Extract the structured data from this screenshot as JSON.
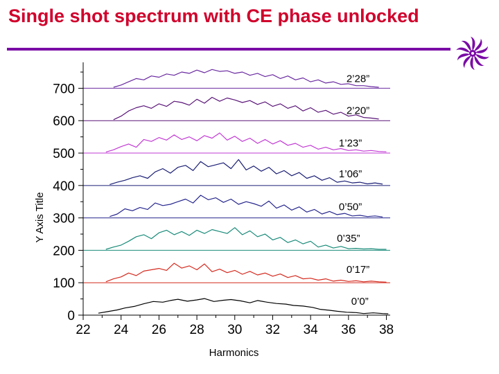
{
  "slide": {
    "title": "Single shot spectrum with CE phase unlocked",
    "logo_icon": "purple-flower-logo-icon",
    "accent_color": "#d0002c",
    "rule_color": "#7a0aa5"
  },
  "chart_data": {
    "type": "line",
    "xlabel": "Harmonics",
    "ylabel": "Y Axis Title",
    "xlim": [
      22,
      38.2
    ],
    "ylim": [
      0,
      780
    ],
    "xticks": [
      22,
      24,
      26,
      28,
      30,
      32,
      34,
      36,
      38
    ],
    "yticks": [
      0,
      100,
      200,
      300,
      400,
      500,
      600,
      700
    ],
    "x_minor_step": 1,
    "y_minor_step": 50,
    "grid": false,
    "series": [
      {
        "name": "0’0”",
        "offset": 0,
        "color": "#000000",
        "label_at": [
          36.6,
          43
        ],
        "x": [
          22.8,
          23.3,
          23.8,
          24.2,
          24.7,
          25.2,
          25.7,
          26.2,
          26.6,
          27.0,
          27.5,
          28.0,
          28.4,
          28.9,
          29.4,
          29.8,
          30.3,
          30.8,
          31.2,
          31.7,
          32.2,
          32.7,
          33.1,
          33.6,
          34.1,
          34.5,
          35.0,
          35.4,
          35.9,
          36.4,
          36.8,
          37.3,
          37.8,
          38.1
        ],
        "y": [
          6,
          11,
          16,
          22,
          27,
          35,
          42,
          40,
          45,
          49,
          43,
          47,
          51,
          42,
          46,
          48,
          44,
          38,
          45,
          40,
          36,
          34,
          30,
          28,
          24,
          18,
          15,
          12,
          9,
          8,
          5,
          7,
          5,
          4
        ]
      },
      {
        "name": "0’17”",
        "offset": 100,
        "color": "#d42a1e",
        "label_at": [
          36.5,
          141
        ],
        "x": [
          23.2,
          23.6,
          24.0,
          24.4,
          24.8,
          25.2,
          25.6,
          26.0,
          26.4,
          26.8,
          27.2,
          27.6,
          28.0,
          28.4,
          28.8,
          29.2,
          29.6,
          30.0,
          30.4,
          30.8,
          31.2,
          31.6,
          32.0,
          32.4,
          32.8,
          33.2,
          33.6,
          34.0,
          34.4,
          34.8,
          35.2,
          35.6,
          36.0,
          36.4,
          36.8,
          37.2,
          37.6,
          38.0
        ],
        "y": [
          3,
          12,
          18,
          30,
          22,
          36,
          40,
          44,
          38,
          60,
          45,
          52,
          40,
          58,
          34,
          42,
          31,
          38,
          26,
          35,
          24,
          30,
          20,
          27,
          16,
          22,
          12,
          14,
          8,
          12,
          5,
          8,
          4,
          6,
          3,
          5,
          3,
          2
        ]
      },
      {
        "name": "0’35”",
        "offset": 200,
        "color": "#178a78",
        "label_at": [
          36.0,
          237
        ],
        "x": [
          23.2,
          23.6,
          24.0,
          24.4,
          24.8,
          25.2,
          25.6,
          26.0,
          26.4,
          26.8,
          27.2,
          27.6,
          28.0,
          28.4,
          28.8,
          29.2,
          29.6,
          30.0,
          30.4,
          30.8,
          31.2,
          31.6,
          32.0,
          32.4,
          32.8,
          33.2,
          33.6,
          34.0,
          34.4,
          34.8,
          35.2,
          35.6,
          36.0,
          36.4,
          36.8,
          37.2,
          37.6,
          38.0
        ],
        "y": [
          3,
          10,
          16,
          28,
          42,
          48,
          36,
          54,
          62,
          48,
          58,
          46,
          62,
          52,
          64,
          58,
          52,
          70,
          48,
          60,
          42,
          50,
          32,
          40,
          24,
          32,
          20,
          28,
          10,
          16,
          7,
          12,
          5,
          6,
          4,
          5,
          3,
          3
        ]
      },
      {
        "name": "0’50”",
        "offset": 300,
        "color": "#26268e",
        "label_at": [
          36.1,
          334
        ],
        "x": [
          23.4,
          23.8,
          24.2,
          24.6,
          25.0,
          25.4,
          25.8,
          26.2,
          26.6,
          27.0,
          27.4,
          27.8,
          28.2,
          28.6,
          29.0,
          29.4,
          29.8,
          30.2,
          30.6,
          31.0,
          31.4,
          31.8,
          32.2,
          32.6,
          33.0,
          33.4,
          33.8,
          34.2,
          34.6,
          35.0,
          35.4,
          35.8,
          36.2,
          36.6,
          37.0,
          37.4,
          37.8
        ],
        "y": [
          4,
          12,
          28,
          22,
          32,
          26,
          46,
          38,
          42,
          50,
          58,
          46,
          70,
          56,
          62,
          48,
          58,
          42,
          50,
          44,
          36,
          52,
          30,
          40,
          24,
          34,
          18,
          26,
          12,
          20,
          10,
          14,
          6,
          8,
          4,
          6,
          3
        ]
      },
      {
        "name": "1’06”",
        "offset": 400,
        "color": "#1a1e74",
        "label_at": [
          36.1,
          436
        ],
        "x": [
          23.4,
          23.8,
          24.2,
          24.6,
          25.0,
          25.4,
          25.8,
          26.2,
          26.6,
          27.0,
          27.4,
          27.8,
          28.2,
          28.6,
          29.0,
          29.4,
          29.8,
          30.2,
          30.6,
          31.0,
          31.4,
          31.8,
          32.2,
          32.6,
          33.0,
          33.4,
          33.8,
          34.2,
          34.6,
          35.0,
          35.4,
          35.8,
          36.2,
          36.6,
          37.0,
          37.4,
          37.8
        ],
        "y": [
          3,
          10,
          16,
          24,
          30,
          22,
          42,
          52,
          38,
          56,
          62,
          46,
          74,
          58,
          64,
          70,
          52,
          80,
          48,
          60,
          44,
          56,
          36,
          46,
          30,
          40,
          22,
          30,
          16,
          24,
          10,
          14,
          8,
          10,
          5,
          8,
          4
        ]
      },
      {
        "name": "1’23”",
        "offset": 500,
        "color": "#c23ad4",
        "label_at": [
          36.1,
          531
        ],
        "x": [
          23.2,
          23.6,
          24.0,
          24.4,
          24.8,
          25.2,
          25.6,
          26.0,
          26.4,
          26.8,
          27.2,
          27.6,
          28.0,
          28.4,
          28.8,
          29.2,
          29.6,
          30.0,
          30.4,
          30.8,
          31.2,
          31.6,
          32.0,
          32.4,
          32.8,
          33.2,
          33.6,
          34.0,
          34.4,
          34.8,
          35.2,
          35.6,
          36.0,
          36.4,
          36.8,
          37.2,
          37.6,
          38.0
        ],
        "y": [
          3,
          10,
          20,
          28,
          18,
          42,
          36,
          48,
          40,
          56,
          42,
          50,
          38,
          54,
          46,
          62,
          40,
          52,
          36,
          46,
          30,
          42,
          28,
          38,
          24,
          30,
          18,
          24,
          12,
          18,
          10,
          14,
          8,
          10,
          6,
          8,
          5,
          4
        ]
      },
      {
        "name": "2’20”",
        "offset": 600,
        "color": "#5a1478",
        "label_at": [
          36.5,
          632
        ],
        "x": [
          23.6,
          24.0,
          24.4,
          24.8,
          25.2,
          25.6,
          26.0,
          26.4,
          26.8,
          27.2,
          27.6,
          28.0,
          28.4,
          28.8,
          29.2,
          29.6,
          30.0,
          30.4,
          30.8,
          31.2,
          31.6,
          32.0,
          32.4,
          32.8,
          33.2,
          33.6,
          34.0,
          34.4,
          34.8,
          35.2,
          35.6,
          36.0,
          36.4,
          36.8,
          37.2,
          37.6
        ],
        "y": [
          3,
          14,
          30,
          40,
          46,
          38,
          52,
          44,
          60,
          56,
          48,
          66,
          54,
          72,
          60,
          70,
          64,
          56,
          62,
          50,
          58,
          44,
          52,
          38,
          46,
          30,
          40,
          26,
          32,
          20,
          26,
          14,
          18,
          10,
          8,
          5
        ]
      },
      {
        "name": "2’28”",
        "offset": 700,
        "color": "#6a2aa0",
        "label_at": [
          36.5,
          730
        ],
        "x": [
          23.6,
          24.0,
          24.4,
          24.8,
          25.2,
          25.6,
          26.0,
          26.4,
          26.8,
          27.2,
          27.6,
          28.0,
          28.4,
          28.8,
          29.2,
          29.6,
          30.0,
          30.4,
          30.8,
          31.2,
          31.6,
          32.0,
          32.4,
          32.8,
          33.2,
          33.6,
          34.0,
          34.4,
          34.8,
          35.2,
          35.6,
          36.0,
          36.4,
          36.8,
          37.2,
          37.6
        ],
        "y": [
          3,
          10,
          20,
          30,
          26,
          38,
          34,
          44,
          40,
          50,
          46,
          56,
          48,
          58,
          52,
          54,
          46,
          50,
          40,
          46,
          36,
          42,
          30,
          38,
          26,
          32,
          20,
          26,
          16,
          20,
          12,
          14,
          8,
          8,
          5,
          3
        ]
      }
    ]
  }
}
